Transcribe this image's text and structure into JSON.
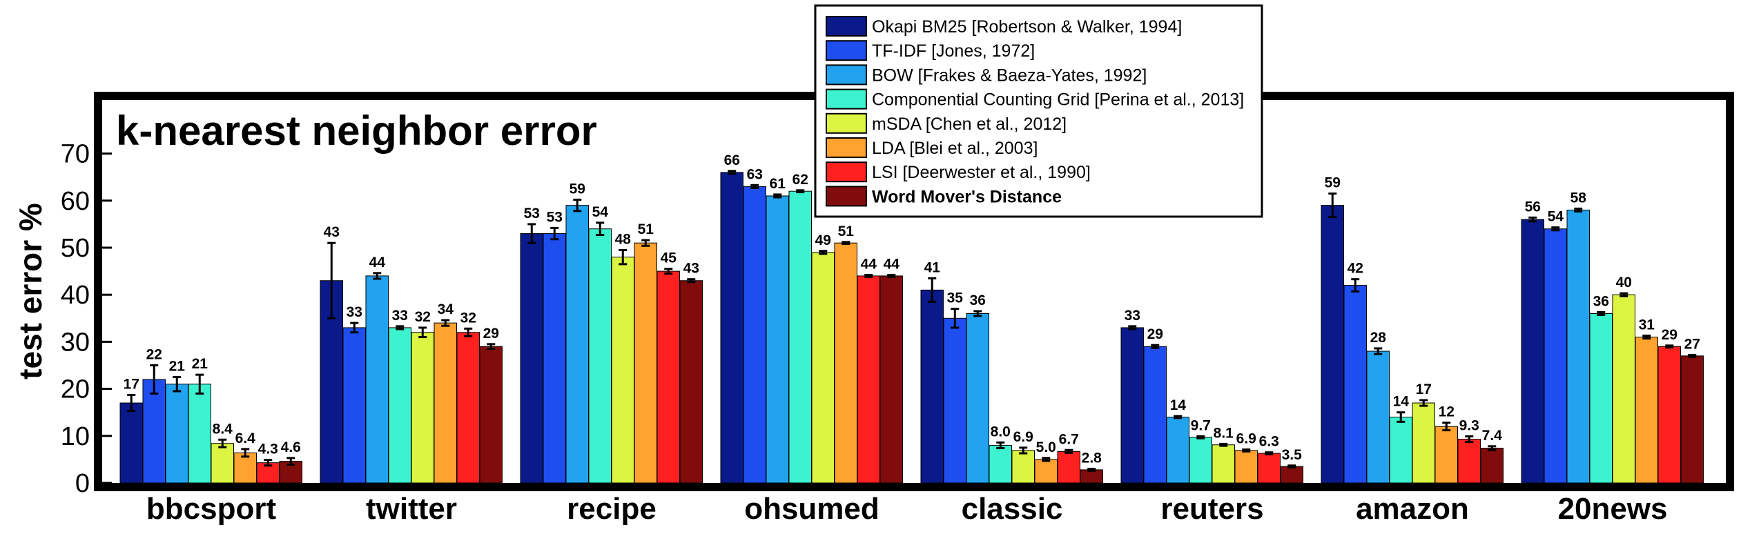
{
  "chart_data": {
    "type": "bar",
    "title": "k-nearest neighbor error",
    "xlabel": "",
    "ylabel": "test error %",
    "ylim": [
      0,
      80
    ],
    "yticks": [
      0,
      10,
      20,
      30,
      40,
      50,
      60,
      70
    ],
    "grid": false,
    "legend_position": "top-center",
    "categories": [
      "bbcsport",
      "twitter",
      "recipe",
      "ohsumed",
      "classic",
      "reuters",
      "amazon",
      "20news"
    ],
    "series": [
      {
        "name": "Okapi BM25 [Robertson & Walker, 1994]",
        "color": "#0a1a8a",
        "values": [
          17,
          43,
          53,
          66,
          41,
          33,
          59,
          56
        ],
        "labels": [
          "17",
          "43",
          "53",
          "66",
          "41",
          "33",
          "59",
          "56"
        ],
        "errors": [
          1.7,
          8,
          2,
          0.3,
          2.5,
          0.3,
          2.5,
          0.4
        ]
      },
      {
        "name": "TF-IDF [Jones, 1972]",
        "color": "#1f4ef0",
        "values": [
          22,
          33,
          53,
          63,
          35,
          29,
          42,
          54
        ],
        "labels": [
          "22",
          "33",
          "53",
          "63",
          "35",
          "29",
          "42",
          "54"
        ],
        "errors": [
          3,
          1,
          1.2,
          0.3,
          2,
          0.3,
          1.3,
          0.3
        ]
      },
      {
        "name": "BOW [Frakes & Baeza-Yates, 1992]",
        "color": "#22a3f0",
        "values": [
          21,
          44,
          59,
          61,
          36,
          14,
          28,
          58
        ],
        "labels": [
          "21",
          "44",
          "59",
          "61",
          "36",
          "14",
          "28",
          "58"
        ],
        "errors": [
          1.5,
          0.6,
          1.2,
          0.3,
          0.5,
          0.2,
          0.6,
          0.3
        ]
      },
      {
        "name": "Componential Counting Grid [Perina et al., 2013]",
        "color": "#3cf2cf",
        "values": [
          21,
          33,
          54,
          62,
          8.0,
          9.7,
          14,
          36
        ],
        "labels": [
          "21",
          "33",
          "54",
          "62",
          "8.0",
          "9.7",
          "14",
          "36"
        ],
        "errors": [
          2,
          0.3,
          1.3,
          0.2,
          0.6,
          0.2,
          1,
          0.3
        ]
      },
      {
        "name": "mSDA [Chen et al., 2012]",
        "color": "#dcf542",
        "values": [
          8.4,
          32,
          48,
          49,
          6.9,
          8.1,
          17,
          40
        ],
        "labels": [
          "8.4",
          "32",
          "48",
          "49",
          "6.9",
          "8.1",
          "17",
          "40"
        ],
        "errors": [
          0.8,
          1,
          1.5,
          0.3,
          0.6,
          0.2,
          0.6,
          0.3
        ]
      },
      {
        "name": "LDA [Blei et al., 2003]",
        "color": "#ffa230",
        "values": [
          6.4,
          34,
          51,
          51,
          5.0,
          6.9,
          12,
          31
        ],
        "labels": [
          "6.4",
          "34",
          "51",
          "51",
          "5.0",
          "6.9",
          "12",
          "31"
        ],
        "errors": [
          0.8,
          0.6,
          0.6,
          0.2,
          0.3,
          0.2,
          0.8,
          0.3
        ]
      },
      {
        "name": "LSI [Deerwester et al., 1990]",
        "color": "#ff2020",
        "values": [
          4.3,
          32,
          45,
          44,
          6.7,
          6.3,
          9.3,
          29
        ],
        "labels": [
          "4.3",
          "32",
          "45",
          "44",
          "6.7",
          "6.3",
          "9.3",
          "29"
        ],
        "errors": [
          0.6,
          0.8,
          0.5,
          0.2,
          0.3,
          0.2,
          0.6,
          0.2
        ]
      },
      {
        "name": "Word Mover's Distance",
        "color": "#800c0c",
        "values": [
          4.6,
          29,
          43,
          44,
          2.8,
          3.5,
          7.4,
          27
        ],
        "labels": [
          "4.6",
          "29",
          "43",
          "44",
          "2.8",
          "3.5",
          "7.4",
          "27"
        ],
        "errors": [
          0.7,
          0.5,
          0.3,
          0.2,
          0.2,
          0.2,
          0.4,
          0.2
        ]
      }
    ]
  }
}
